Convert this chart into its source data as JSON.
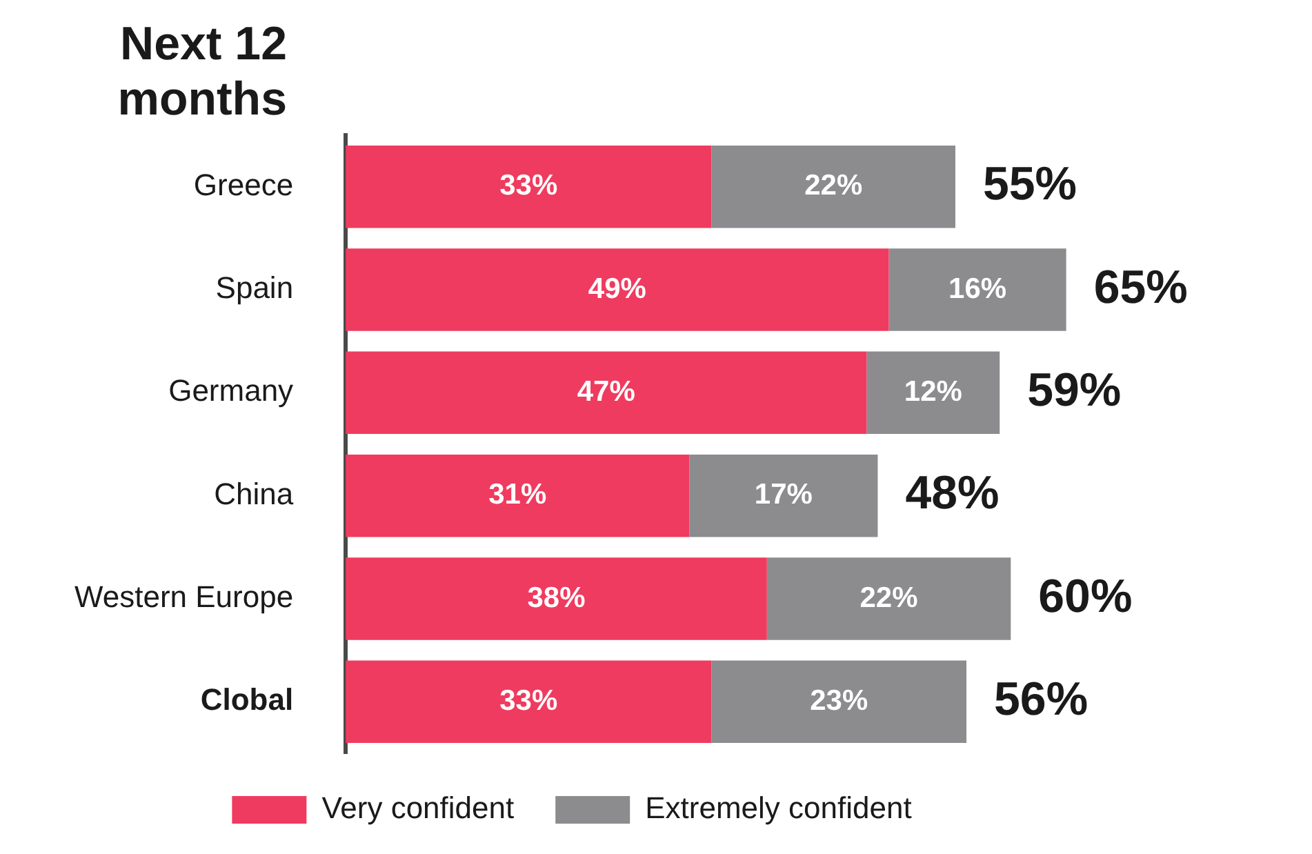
{
  "chart_data": {
    "type": "bar",
    "orientation": "horizontal",
    "stacked": true,
    "title": "Next 12 months",
    "categories": [
      "Greece",
      "Spain",
      "Germany",
      "China",
      "Western Europe",
      "Clobal"
    ],
    "series": [
      {
        "name": "Very confident",
        "color": "#ef3b5f",
        "values": [
          33,
          49,
          47,
          31,
          38,
          33
        ],
        "value_labels": [
          "33%",
          "49%",
          "47%",
          "31%",
          "38%",
          "33%"
        ]
      },
      {
        "name": "Extremely confident",
        "color": "#8c8c8f",
        "values": [
          22,
          16,
          12,
          17,
          22,
          23
        ],
        "value_labels": [
          "22%",
          "16%",
          "12%",
          "17%",
          "22%",
          "23%"
        ]
      }
    ],
    "totals": [
      "55%",
      "65%",
      "59%",
      "48%",
      "60%",
      "56%"
    ],
    "legend": "bottom",
    "grid": false
  }
}
